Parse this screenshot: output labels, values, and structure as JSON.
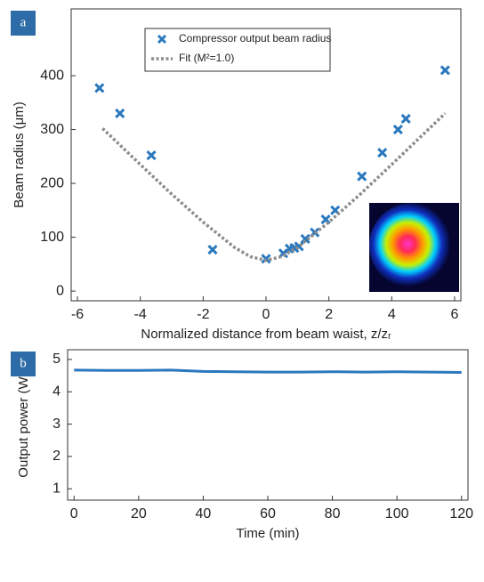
{
  "chart_data": [
    {
      "type": "scatter",
      "panel_label": "a",
      "x_label": "Normalized distance from beam waist, z/zᵣ",
      "y_label": "Beam radius (μm)",
      "xlim": [
        -6.2,
        6.2
      ],
      "xticks": [
        -6,
        -4,
        -2,
        0,
        2,
        4,
        6
      ],
      "ylim": [
        -18,
        524
      ],
      "yticks": [
        0,
        100,
        200,
        300,
        400
      ],
      "series": [
        {
          "name": "Compressor output beam radius",
          "color": "#2a78bd",
          "type": "scatter",
          "x": [
            -5.3,
            -4.65,
            -3.65,
            -1.7,
            0,
            0.55,
            0.75,
            0.9,
            1.05,
            1.25,
            1.55,
            1.9,
            2.2,
            3.05,
            3.7,
            4.2,
            4.45,
            5.7
          ],
          "values": [
            377,
            330,
            252,
            77,
            60,
            70,
            79,
            80,
            83,
            97,
            109,
            133,
            150,
            213,
            257,
            300,
            320,
            410
          ]
        },
        {
          "name": "Fit (M²=1.0)",
          "color": "#8c8c8c",
          "type": "line",
          "dotted": true,
          "x": [
            -5.2,
            -4,
            -3,
            -2,
            -1,
            -0.5,
            0,
            0.5,
            1,
            2,
            3,
            4,
            5,
            5.7
          ],
          "values": [
            302,
            235,
            180,
            128,
            81,
            64,
            57,
            64,
            81,
            128,
            180,
            235,
            291,
            330
          ]
        }
      ]
    },
    {
      "type": "line",
      "panel_label": "b",
      "x_label": "Time (min)",
      "y_label": "Output power (W)",
      "xlim": [
        -2,
        122
      ],
      "xticks": [
        0,
        20,
        40,
        60,
        80,
        100,
        120
      ],
      "ylim": [
        0.65,
        5.3
      ],
      "yticks": [
        1,
        2,
        3,
        4,
        5
      ],
      "series": [
        {
          "color": "#2a78bd",
          "type": "line",
          "x": [
            0,
            10,
            20,
            30,
            40,
            50,
            60,
            70,
            80,
            90,
            100,
            110,
            120
          ],
          "values": [
            4.67,
            4.66,
            4.66,
            4.67,
            4.63,
            4.62,
            4.61,
            4.61,
            4.62,
            4.61,
            4.62,
            4.61,
            4.6
          ]
        }
      ]
    }
  ]
}
